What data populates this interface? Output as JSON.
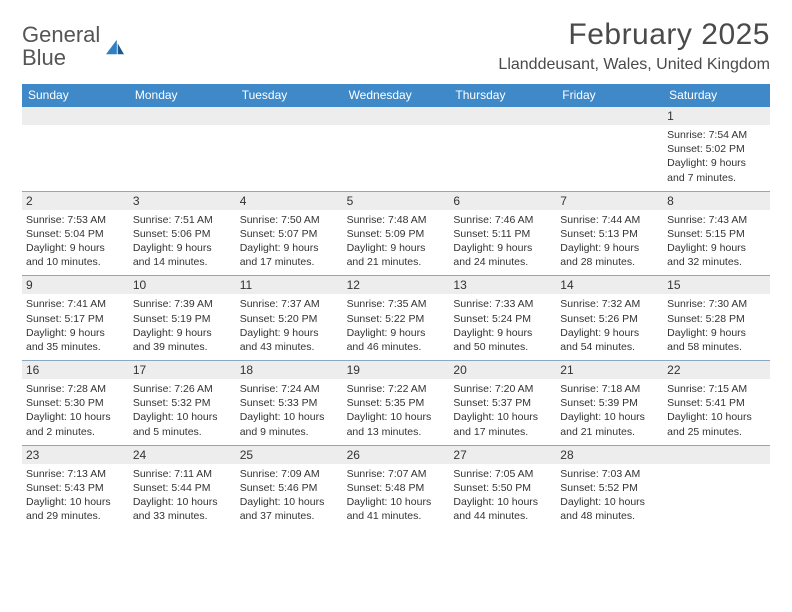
{
  "logo": {
    "text_a": "General",
    "text_b": "Blue"
  },
  "title": "February 2025",
  "location": "Llanddeusant, Wales, United Kingdom",
  "colors": {
    "header_bg": "#3f89c8",
    "daynum_bg": "#ededed",
    "rule": "#8aa8c2",
    "text": "#333333",
    "title": "#4a4a4a",
    "logo_grey": "#555555",
    "logo_blue": "#2f7fc2"
  },
  "typography": {
    "body_pt": 10.5,
    "weekday_pt": 12,
    "title_pt": 30,
    "location_pt": 16
  },
  "weekdays": [
    "Sunday",
    "Monday",
    "Tuesday",
    "Wednesday",
    "Thursday",
    "Friday",
    "Saturday"
  ],
  "weeks": [
    [
      null,
      null,
      null,
      null,
      null,
      null,
      {
        "n": "1",
        "sunrise": "Sunrise: 7:54 AM",
        "sunset": "Sunset: 5:02 PM",
        "daylight1": "Daylight: 9 hours",
        "daylight2": "and 7 minutes."
      }
    ],
    [
      {
        "n": "2",
        "sunrise": "Sunrise: 7:53 AM",
        "sunset": "Sunset: 5:04 PM",
        "daylight1": "Daylight: 9 hours",
        "daylight2": "and 10 minutes."
      },
      {
        "n": "3",
        "sunrise": "Sunrise: 7:51 AM",
        "sunset": "Sunset: 5:06 PM",
        "daylight1": "Daylight: 9 hours",
        "daylight2": "and 14 minutes."
      },
      {
        "n": "4",
        "sunrise": "Sunrise: 7:50 AM",
        "sunset": "Sunset: 5:07 PM",
        "daylight1": "Daylight: 9 hours",
        "daylight2": "and 17 minutes."
      },
      {
        "n": "5",
        "sunrise": "Sunrise: 7:48 AM",
        "sunset": "Sunset: 5:09 PM",
        "daylight1": "Daylight: 9 hours",
        "daylight2": "and 21 minutes."
      },
      {
        "n": "6",
        "sunrise": "Sunrise: 7:46 AM",
        "sunset": "Sunset: 5:11 PM",
        "daylight1": "Daylight: 9 hours",
        "daylight2": "and 24 minutes."
      },
      {
        "n": "7",
        "sunrise": "Sunrise: 7:44 AM",
        "sunset": "Sunset: 5:13 PM",
        "daylight1": "Daylight: 9 hours",
        "daylight2": "and 28 minutes."
      },
      {
        "n": "8",
        "sunrise": "Sunrise: 7:43 AM",
        "sunset": "Sunset: 5:15 PM",
        "daylight1": "Daylight: 9 hours",
        "daylight2": "and 32 minutes."
      }
    ],
    [
      {
        "n": "9",
        "sunrise": "Sunrise: 7:41 AM",
        "sunset": "Sunset: 5:17 PM",
        "daylight1": "Daylight: 9 hours",
        "daylight2": "and 35 minutes."
      },
      {
        "n": "10",
        "sunrise": "Sunrise: 7:39 AM",
        "sunset": "Sunset: 5:19 PM",
        "daylight1": "Daylight: 9 hours",
        "daylight2": "and 39 minutes."
      },
      {
        "n": "11",
        "sunrise": "Sunrise: 7:37 AM",
        "sunset": "Sunset: 5:20 PM",
        "daylight1": "Daylight: 9 hours",
        "daylight2": "and 43 minutes."
      },
      {
        "n": "12",
        "sunrise": "Sunrise: 7:35 AM",
        "sunset": "Sunset: 5:22 PM",
        "daylight1": "Daylight: 9 hours",
        "daylight2": "and 46 minutes."
      },
      {
        "n": "13",
        "sunrise": "Sunrise: 7:33 AM",
        "sunset": "Sunset: 5:24 PM",
        "daylight1": "Daylight: 9 hours",
        "daylight2": "and 50 minutes."
      },
      {
        "n": "14",
        "sunrise": "Sunrise: 7:32 AM",
        "sunset": "Sunset: 5:26 PM",
        "daylight1": "Daylight: 9 hours",
        "daylight2": "and 54 minutes."
      },
      {
        "n": "15",
        "sunrise": "Sunrise: 7:30 AM",
        "sunset": "Sunset: 5:28 PM",
        "daylight1": "Daylight: 9 hours",
        "daylight2": "and 58 minutes."
      }
    ],
    [
      {
        "n": "16",
        "sunrise": "Sunrise: 7:28 AM",
        "sunset": "Sunset: 5:30 PM",
        "daylight1": "Daylight: 10 hours",
        "daylight2": "and 2 minutes."
      },
      {
        "n": "17",
        "sunrise": "Sunrise: 7:26 AM",
        "sunset": "Sunset: 5:32 PM",
        "daylight1": "Daylight: 10 hours",
        "daylight2": "and 5 minutes."
      },
      {
        "n": "18",
        "sunrise": "Sunrise: 7:24 AM",
        "sunset": "Sunset: 5:33 PM",
        "daylight1": "Daylight: 10 hours",
        "daylight2": "and 9 minutes."
      },
      {
        "n": "19",
        "sunrise": "Sunrise: 7:22 AM",
        "sunset": "Sunset: 5:35 PM",
        "daylight1": "Daylight: 10 hours",
        "daylight2": "and 13 minutes."
      },
      {
        "n": "20",
        "sunrise": "Sunrise: 7:20 AM",
        "sunset": "Sunset: 5:37 PM",
        "daylight1": "Daylight: 10 hours",
        "daylight2": "and 17 minutes."
      },
      {
        "n": "21",
        "sunrise": "Sunrise: 7:18 AM",
        "sunset": "Sunset: 5:39 PM",
        "daylight1": "Daylight: 10 hours",
        "daylight2": "and 21 minutes."
      },
      {
        "n": "22",
        "sunrise": "Sunrise: 7:15 AM",
        "sunset": "Sunset: 5:41 PM",
        "daylight1": "Daylight: 10 hours",
        "daylight2": "and 25 minutes."
      }
    ],
    [
      {
        "n": "23",
        "sunrise": "Sunrise: 7:13 AM",
        "sunset": "Sunset: 5:43 PM",
        "daylight1": "Daylight: 10 hours",
        "daylight2": "and 29 minutes."
      },
      {
        "n": "24",
        "sunrise": "Sunrise: 7:11 AM",
        "sunset": "Sunset: 5:44 PM",
        "daylight1": "Daylight: 10 hours",
        "daylight2": "and 33 minutes."
      },
      {
        "n": "25",
        "sunrise": "Sunrise: 7:09 AM",
        "sunset": "Sunset: 5:46 PM",
        "daylight1": "Daylight: 10 hours",
        "daylight2": "and 37 minutes."
      },
      {
        "n": "26",
        "sunrise": "Sunrise: 7:07 AM",
        "sunset": "Sunset: 5:48 PM",
        "daylight1": "Daylight: 10 hours",
        "daylight2": "and 41 minutes."
      },
      {
        "n": "27",
        "sunrise": "Sunrise: 7:05 AM",
        "sunset": "Sunset: 5:50 PM",
        "daylight1": "Daylight: 10 hours",
        "daylight2": "and 44 minutes."
      },
      {
        "n": "28",
        "sunrise": "Sunrise: 7:03 AM",
        "sunset": "Sunset: 5:52 PM",
        "daylight1": "Daylight: 10 hours",
        "daylight2": "and 48 minutes."
      },
      null
    ]
  ]
}
